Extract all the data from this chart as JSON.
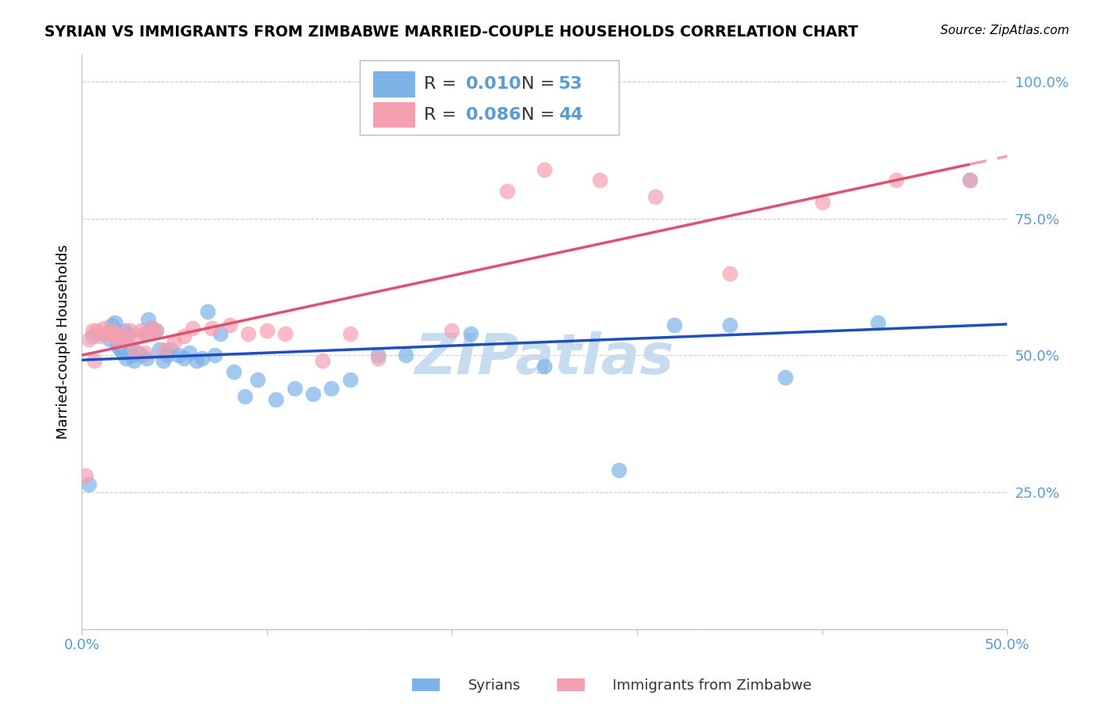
{
  "title": "SYRIAN VS IMMIGRANTS FROM ZIMBABWE MARRIED-COUPLE HOUSEHOLDS CORRELATION CHART",
  "source": "Source: ZipAtlas.com",
  "xlabel_bottom": "",
  "ylabel": "Married-couple Households",
  "xmin": 0.0,
  "xmax": 0.5,
  "ymin": 0.0,
  "ymax": 1.05,
  "x_ticks": [
    0.0,
    0.1,
    0.2,
    0.3,
    0.4,
    0.5
  ],
  "x_tick_labels": [
    "0.0%",
    "",
    "",
    "",
    "",
    "50.0%"
  ],
  "y_ticks": [
    0.0,
    0.25,
    0.5,
    0.75,
    1.0
  ],
  "y_tick_labels": [
    "",
    "25.0%",
    "50.0%",
    "75.0%",
    "100.0%"
  ],
  "legend_label1": "R = 0.010   N = 53",
  "legend_label2": "R = 0.086   N = 44",
  "legend_r1": "0.010",
  "legend_n1": "53",
  "legend_r2": "0.086",
  "legend_n2": "44",
  "color_blue": "#7EB3E8",
  "color_pink": "#F4A0B0",
  "line_color_blue": "#1E4FBF",
  "line_color_pink": "#E05070",
  "line_color_pink_dash": "#F0A0B8",
  "watermark": "ZIPatlas",
  "watermark_color": "#C8DCF0",
  "blue_x": [
    0.004,
    0.006,
    0.012,
    0.015,
    0.016,
    0.018,
    0.019,
    0.02,
    0.021,
    0.022,
    0.023,
    0.024,
    0.025,
    0.026,
    0.027,
    0.028,
    0.03,
    0.032,
    0.034,
    0.035,
    0.036,
    0.038,
    0.04,
    0.042,
    0.044,
    0.046,
    0.048,
    0.052,
    0.055,
    0.058,
    0.062,
    0.065,
    0.068,
    0.072,
    0.075,
    0.082,
    0.088,
    0.095,
    0.105,
    0.115,
    0.125,
    0.135,
    0.145,
    0.16,
    0.175,
    0.21,
    0.25,
    0.29,
    0.32,
    0.35,
    0.38,
    0.43,
    0.48
  ],
  "blue_y": [
    0.265,
    0.535,
    0.54,
    0.53,
    0.555,
    0.56,
    0.52,
    0.515,
    0.51,
    0.505,
    0.545,
    0.495,
    0.54,
    0.515,
    0.5,
    0.49,
    0.505,
    0.5,
    0.54,
    0.495,
    0.565,
    0.55,
    0.545,
    0.51,
    0.49,
    0.5,
    0.51,
    0.5,
    0.495,
    0.505,
    0.49,
    0.495,
    0.58,
    0.5,
    0.54,
    0.47,
    0.425,
    0.455,
    0.42,
    0.44,
    0.43,
    0.44,
    0.455,
    0.5,
    0.5,
    0.54,
    0.48,
    0.29,
    0.555,
    0.555,
    0.46,
    0.56,
    0.82
  ],
  "pink_x": [
    0.002,
    0.004,
    0.006,
    0.007,
    0.008,
    0.01,
    0.012,
    0.014,
    0.015,
    0.016,
    0.018,
    0.019,
    0.02,
    0.022,
    0.024,
    0.026,
    0.028,
    0.03,
    0.032,
    0.034,
    0.036,
    0.038,
    0.04,
    0.045,
    0.05,
    0.055,
    0.06,
    0.07,
    0.08,
    0.09,
    0.1,
    0.11,
    0.13,
    0.145,
    0.16,
    0.2,
    0.23,
    0.25,
    0.28,
    0.31,
    0.35,
    0.4,
    0.44,
    0.48
  ],
  "pink_y": [
    0.28,
    0.53,
    0.545,
    0.49,
    0.545,
    0.535,
    0.55,
    0.54,
    0.54,
    0.545,
    0.535,
    0.54,
    0.525,
    0.535,
    0.53,
    0.545,
    0.51,
    0.535,
    0.545,
    0.505,
    0.54,
    0.55,
    0.545,
    0.51,
    0.525,
    0.535,
    0.55,
    0.55,
    0.555,
    0.54,
    0.545,
    0.54,
    0.49,
    0.54,
    0.495,
    0.545,
    0.8,
    0.84,
    0.82,
    0.79,
    0.65,
    0.78,
    0.82,
    0.82
  ]
}
